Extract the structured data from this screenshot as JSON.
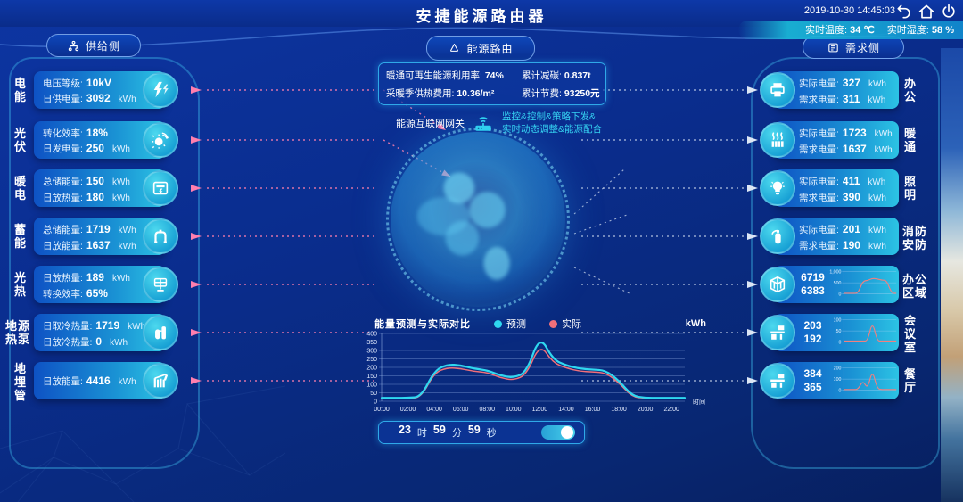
{
  "colors": {
    "background": "#0a2d8e",
    "accent_cyan": "#2fd0f0",
    "card_blue": "#0e52c4",
    "card_cyan": "#2cc3e4",
    "arrow_pink": "#ff7fae",
    "arrow_white": "#dce6f5",
    "forecast": "#2fd8f0",
    "actual": "#f0707a"
  },
  "header": {
    "title": "安捷能源路由器",
    "datetime": "2019-10-30 14:45:03",
    "temperature_label": "实时温度:",
    "temperature_value": "34 ℃",
    "humidity_label": "实时湿度:",
    "humidity_value": "58 %"
  },
  "supply": {
    "button_label": "供给侧",
    "items": [
      {
        "label": "电能",
        "icon": "lightning-icon",
        "rows": [
          {
            "label": "电压等级:",
            "value": "10kV",
            "unit": ""
          },
          {
            "label": "日供电量:",
            "value": "3092",
            "unit": "kWh"
          }
        ]
      },
      {
        "label": "光伏",
        "icon": "sun-icon",
        "rows": [
          {
            "label": "转化效率:",
            "value": "18%",
            "unit": ""
          },
          {
            "label": "日发电量:",
            "value": "250",
            "unit": "kWh"
          }
        ]
      },
      {
        "label": "暖电",
        "icon": "meter-icon",
        "rows": [
          {
            "label": "总储能量:",
            "value": "150",
            "unit": "kWh"
          },
          {
            "label": "日放热量:",
            "value": "180",
            "unit": "kWh"
          }
        ]
      },
      {
        "label": "蓄能",
        "icon": "storage-icon",
        "rows": [
          {
            "label": "总储能量:",
            "value": "1719",
            "unit": "kWh"
          },
          {
            "label": "日放能量:",
            "value": "1637",
            "unit": "kWh"
          }
        ]
      },
      {
        "label": "光热",
        "icon": "solar-panel-icon",
        "rows": [
          {
            "label": "日放热量:",
            "value": "189",
            "unit": "kWh"
          },
          {
            "label": "转换效率:",
            "value": "65%",
            "unit": ""
          }
        ]
      },
      {
        "label": "地源热泵",
        "icon": "heat-pump-icon",
        "rows": [
          {
            "label": "日取冷热量:",
            "value": "1719",
            "unit": "kWh"
          },
          {
            "label": "日放冷热量:",
            "value": "0",
            "unit": "kWh"
          }
        ]
      },
      {
        "label": "地埋管",
        "icon": "pipes-icon",
        "rows": [
          {
            "label": "日放能量:",
            "value": "4416",
            "unit": "kWh"
          }
        ]
      }
    ]
  },
  "center": {
    "router_button_label": "能源路由",
    "stats": [
      {
        "label": "暖通可再生能源利用率:",
        "value": "74%"
      },
      {
        "label": "累计减碳:",
        "value": "0.837t"
      },
      {
        "label": "采暖季供热费用:",
        "value": "10.36/m²"
      },
      {
        "label": "累计节费:",
        "value": "93250元"
      }
    ],
    "gateway_label": "能源互联网网关",
    "gateway_desc_line1": "监控&控制&策略下发&",
    "gateway_desc_line2": "实时动态调整&能源配合"
  },
  "timer": {
    "hours": "23",
    "hours_unit": "时",
    "minutes": "59",
    "minutes_unit": "分",
    "seconds": "59",
    "seconds_unit": "秒",
    "toggle_on": true
  },
  "demand": {
    "button_label": "需求侧",
    "items": [
      {
        "label": "办公",
        "icon": "printer-icon",
        "rows": [
          {
            "label": "实际电量:",
            "value": "327",
            "unit": "kWh"
          },
          {
            "label": "需求电量:",
            "value": "311",
            "unit": "kWh"
          }
        ]
      },
      {
        "label": "暖通",
        "icon": "radiator-icon",
        "rows": [
          {
            "label": "实际电量:",
            "value": "1723",
            "unit": "kWh"
          },
          {
            "label": "需求电量:",
            "value": "1637",
            "unit": "kWh"
          }
        ]
      },
      {
        "label": "照明",
        "icon": "bulb-icon",
        "rows": [
          {
            "label": "实际电量:",
            "value": "411",
            "unit": "kWh"
          },
          {
            "label": "需求电量:",
            "value": "390",
            "unit": "kWh"
          }
        ]
      },
      {
        "label": "消防安防",
        "icon": "extinguisher-icon",
        "rows": [
          {
            "label": "实际电量:",
            "value": "201",
            "unit": "kWh"
          },
          {
            "label": "需求电量:",
            "value": "190",
            "unit": "kWh"
          }
        ]
      },
      {
        "label": "办公区域",
        "icon": "building-icon",
        "values": [
          "6719",
          "6383"
        ],
        "spark": {
          "y_tick_labels": [
            "1,000",
            "500",
            "0"
          ],
          "values": [
            20,
            20,
            20,
            20,
            580,
            600,
            700,
            680,
            620,
            610,
            20,
            20
          ]
        }
      },
      {
        "label": "会议室",
        "icon": "desk-icon",
        "values": [
          "203",
          "192"
        ],
        "spark": {
          "y_tick_labels": [
            "100",
            "50",
            "0"
          ],
          "values": [
            4,
            4,
            4,
            4,
            4,
            4,
            95,
            4,
            4,
            4,
            4,
            4
          ]
        }
      },
      {
        "label": "餐厅",
        "icon": "desk-icon",
        "values": [
          "384",
          "365"
        ],
        "spark": {
          "y_tick_labels": [
            "200",
            "100",
            "0"
          ],
          "values": [
            5,
            5,
            5,
            5,
            88,
            10,
            185,
            12,
            5,
            5,
            5,
            5
          ]
        }
      }
    ]
  },
  "chart_data": {
    "type": "line",
    "title": "能量预测与实际对比",
    "unit_label": "kWh",
    "xlabel": "时间",
    "x": [
      "00:00",
      "01:00",
      "02:00",
      "03:00",
      "04:00",
      "05:00",
      "06:00",
      "07:00",
      "08:00",
      "09:00",
      "10:00",
      "11:00",
      "12:00",
      "13:00",
      "14:00",
      "15:00",
      "16:00",
      "17:00",
      "18:00",
      "19:00",
      "20:00",
      "21:00",
      "22:00",
      "23:00"
    ],
    "x_ticks": [
      "00:00",
      "02:00",
      "04:00",
      "06:00",
      "08:00",
      "10:00",
      "12:00",
      "14:00",
      "16:00",
      "18:00",
      "20:00",
      "22:00"
    ],
    "ylim": [
      0,
      400
    ],
    "y_ticks": [
      0,
      50,
      100,
      150,
      200,
      250,
      300,
      350,
      400
    ],
    "grid": true,
    "legend_position": "top",
    "series": [
      {
        "name": "预测",
        "color": "#2fd8f0",
        "values": [
          20,
          20,
          20,
          26,
          180,
          218,
          212,
          192,
          183,
          152,
          138,
          172,
          390,
          246,
          212,
          192,
          187,
          182,
          122,
          32,
          20,
          20,
          20,
          20
        ]
      },
      {
        "name": "实际",
        "color": "#f0707a",
        "values": [
          17,
          17,
          17,
          22,
          168,
          198,
          193,
          176,
          170,
          139,
          124,
          157,
          340,
          228,
          196,
          177,
          173,
          168,
          110,
          26,
          17,
          17,
          17,
          17
        ]
      }
    ]
  }
}
